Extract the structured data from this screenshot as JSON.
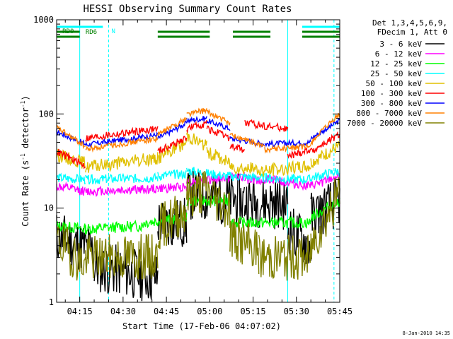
{
  "chart_data": {
    "type": "line",
    "title": "HESSI Observing Summary Count Rates",
    "xlabel": "Start Time (17-Feb-06 04:07:02)",
    "ylabel_main": "Count Rate (s",
    "ylabel_sup1": "-1",
    "ylabel_mid": " detector",
    "ylabel_sup2": "-1",
    "ylabel_end": ")",
    "ylog": true,
    "ylim": [
      1,
      1000
    ],
    "xlim_min": [
      0,
      98
    ],
    "xticks": [
      {
        "m": 8,
        "label": "04:15"
      },
      {
        "m": 23,
        "label": "04:30"
      },
      {
        "m": 38,
        "label": "04:45"
      },
      {
        "m": 53,
        "label": "05:00"
      },
      {
        "m": 68,
        "label": "05:15"
      },
      {
        "m": 83,
        "label": "05:30"
      },
      {
        "m": 98,
        "label": "05:45"
      }
    ],
    "yticks": [
      {
        "v": 1,
        "label": "1"
      },
      {
        "v": 10,
        "label": "10"
      },
      {
        "v": 100,
        "label": "100"
      },
      {
        "v": 1000,
        "label": "1000"
      }
    ],
    "legend_header": [
      "Det 1,3,4,5,6,9,",
      "FDecim 1, Att 0"
    ],
    "legend_position": "right",
    "series": [
      {
        "name": "3 - 6 keV",
        "color": "#000000",
        "base": 8,
        "amp": 1.3,
        "noise": 0.28,
        "seed": 11,
        "segments": [
          [
            0,
            13,
            5,
            3.5
          ],
          [
            13,
            35,
            2.4,
            1.8
          ],
          [
            35,
            45,
            7,
            7
          ],
          [
            45,
            65,
            14,
            12
          ],
          [
            65,
            80,
            12,
            11
          ],
          [
            80,
            88,
            6,
            4
          ],
          [
            88,
            98,
            8,
            12
          ]
        ]
      },
      {
        "name": "6 - 12 keV",
        "color": "#ff00ff",
        "base": 17,
        "amp": 1.1,
        "noise": 0.05,
        "seed": 12,
        "segments": [
          [
            0,
            10,
            17,
            15
          ],
          [
            10,
            35,
            15,
            16
          ],
          [
            35,
            45,
            16,
            17
          ],
          [
            45,
            65,
            19,
            22
          ],
          [
            65,
            78,
            20,
            20
          ],
          [
            78,
            88,
            19,
            17
          ],
          [
            88,
            98,
            17,
            22
          ]
        ]
      },
      {
        "name": "12 - 25 keV",
        "color": "#00ff00",
        "base": 7,
        "amp": 1.0,
        "noise": 0.06,
        "seed": 13,
        "segments": [
          [
            0,
            10,
            6.5,
            6
          ],
          [
            10,
            30,
            6,
            6.5
          ],
          [
            30,
            45,
            7,
            8
          ],
          [
            45,
            60,
            12,
            12
          ],
          [
            60,
            75,
            7,
            7
          ],
          [
            75,
            88,
            7,
            7
          ],
          [
            88,
            98,
            8,
            12
          ]
        ]
      },
      {
        "name": "25 - 50 keV",
        "color": "#00ffff",
        "base": 21,
        "amp": 1.0,
        "noise": 0.05,
        "seed": 14,
        "segments": [
          [
            0,
            10,
            21,
            20
          ],
          [
            10,
            35,
            20,
            21
          ],
          [
            35,
            45,
            22,
            23
          ],
          [
            45,
            58,
            25,
            22
          ],
          [
            58,
            72,
            22,
            21
          ],
          [
            72,
            88,
            21,
            20
          ],
          [
            88,
            98,
            21,
            25
          ]
        ]
      },
      {
        "name": "50 - 100 keV",
        "color": "#e0c000",
        "base": 30,
        "amp": 1.0,
        "noise": 0.07,
        "seed": 15,
        "segments": [
          [
            0,
            10,
            37,
            30
          ],
          [
            10,
            35,
            27,
            34
          ],
          [
            35,
            45,
            34,
            50
          ],
          [
            45,
            52,
            60,
            45
          ],
          [
            52,
            60,
            40,
            30
          ],
          [
            60,
            72,
            28,
            25
          ],
          [
            72,
            88,
            25,
            28
          ],
          [
            88,
            98,
            30,
            45
          ]
        ]
      },
      {
        "name": "100 - 300 keV",
        "color": "#ff0000",
        "base": 60,
        "amp": 1.0,
        "noise": 0.04,
        "seed": 16,
        "segments": [
          [
            0,
            10,
            40,
            28
          ],
          [
            10,
            35,
            55,
            70
          ],
          [
            35,
            45,
            40,
            55
          ],
          [
            45,
            52,
            70,
            80
          ],
          [
            52,
            60,
            70,
            55
          ],
          [
            60,
            65,
            45,
            42
          ],
          [
            65,
            80,
            80,
            70
          ],
          [
            80,
            88,
            35,
            42
          ],
          [
            88,
            98,
            40,
            60
          ]
        ]
      },
      {
        "name": "300 - 800 keV",
        "color": "#0000ff",
        "base": 50,
        "amp": 1.0,
        "noise": 0.03,
        "seed": 17,
        "segments": [
          [
            0,
            10,
            65,
            48
          ],
          [
            10,
            35,
            47,
            60
          ],
          [
            35,
            45,
            55,
            80
          ],
          [
            45,
            52,
            85,
            90
          ],
          [
            52,
            60,
            85,
            70
          ],
          [
            60,
            72,
            55,
            48
          ],
          [
            72,
            88,
            48,
            50
          ],
          [
            88,
            98,
            55,
            85
          ]
        ]
      },
      {
        "name": "800 - 7000 keV",
        "color": "#ff8000",
        "base": 50,
        "amp": 1.0,
        "noise": 0.03,
        "seed": 18,
        "segments": [
          [
            0,
            10,
            72,
            45
          ],
          [
            10,
            35,
            42,
            55
          ],
          [
            35,
            45,
            60,
            90
          ],
          [
            45,
            52,
            100,
            110
          ],
          [
            52,
            60,
            105,
            80
          ],
          [
            60,
            72,
            60,
            45
          ],
          [
            72,
            88,
            42,
            45
          ],
          [
            88,
            98,
            50,
            100
          ]
        ]
      },
      {
        "name": "7000 - 20000 keV",
        "color": "#808000",
        "base": 5,
        "amp": 1.0,
        "noise": 0.25,
        "seed": 19,
        "segments": [
          [
            0,
            10,
            4.5,
            2.5
          ],
          [
            10,
            35,
            3,
            3
          ],
          [
            35,
            45,
            6,
            10
          ],
          [
            45,
            52,
            13,
            16
          ],
          [
            52,
            60,
            15,
            10
          ],
          [
            60,
            70,
            5,
            3.5
          ],
          [
            70,
            88,
            3,
            3
          ],
          [
            88,
            98,
            4,
            15
          ]
        ]
      }
    ],
    "flags": [
      {
        "label": "RD0",
        "color": "#00cccc",
        "labelcolor": "#008000",
        "y": 0,
        "segments": [
          [
            0,
            15
          ]
        ]
      },
      {
        "label": "N",
        "color": "#00ffff",
        "labelcolor": "#00ffff",
        "y": 0,
        "segments": [
          [
            0,
            16
          ],
          [
            85,
            98
          ]
        ]
      },
      {
        "label": "RD6",
        "color": "#008000",
        "labelcolor": "#008000",
        "y": 1,
        "segments": [
          [
            0,
            8
          ],
          [
            35,
            53
          ],
          [
            61,
            74
          ],
          [
            85,
            98
          ]
        ]
      },
      {
        "label": "",
        "color": "#008000",
        "labelcolor": "#008000",
        "y": 2,
        "segments": [
          [
            0,
            8
          ],
          [
            35,
            53
          ],
          [
            61,
            74
          ],
          [
            85,
            98
          ]
        ]
      }
    ],
    "vlines": [
      {
        "m": 0,
        "style": "solid",
        "color": "#00ffff"
      },
      {
        "m": 8,
        "style": "solid",
        "color": "#00ffff"
      },
      {
        "m": 18,
        "style": "dashed",
        "color": "#00ffff"
      },
      {
        "m": 80,
        "style": "solid",
        "color": "#00ffff"
      },
      {
        "m": 96,
        "style": "dashed",
        "color": "#00ffff"
      }
    ]
  },
  "footer": {
    "date": "8-Jan-2010 14:35"
  }
}
